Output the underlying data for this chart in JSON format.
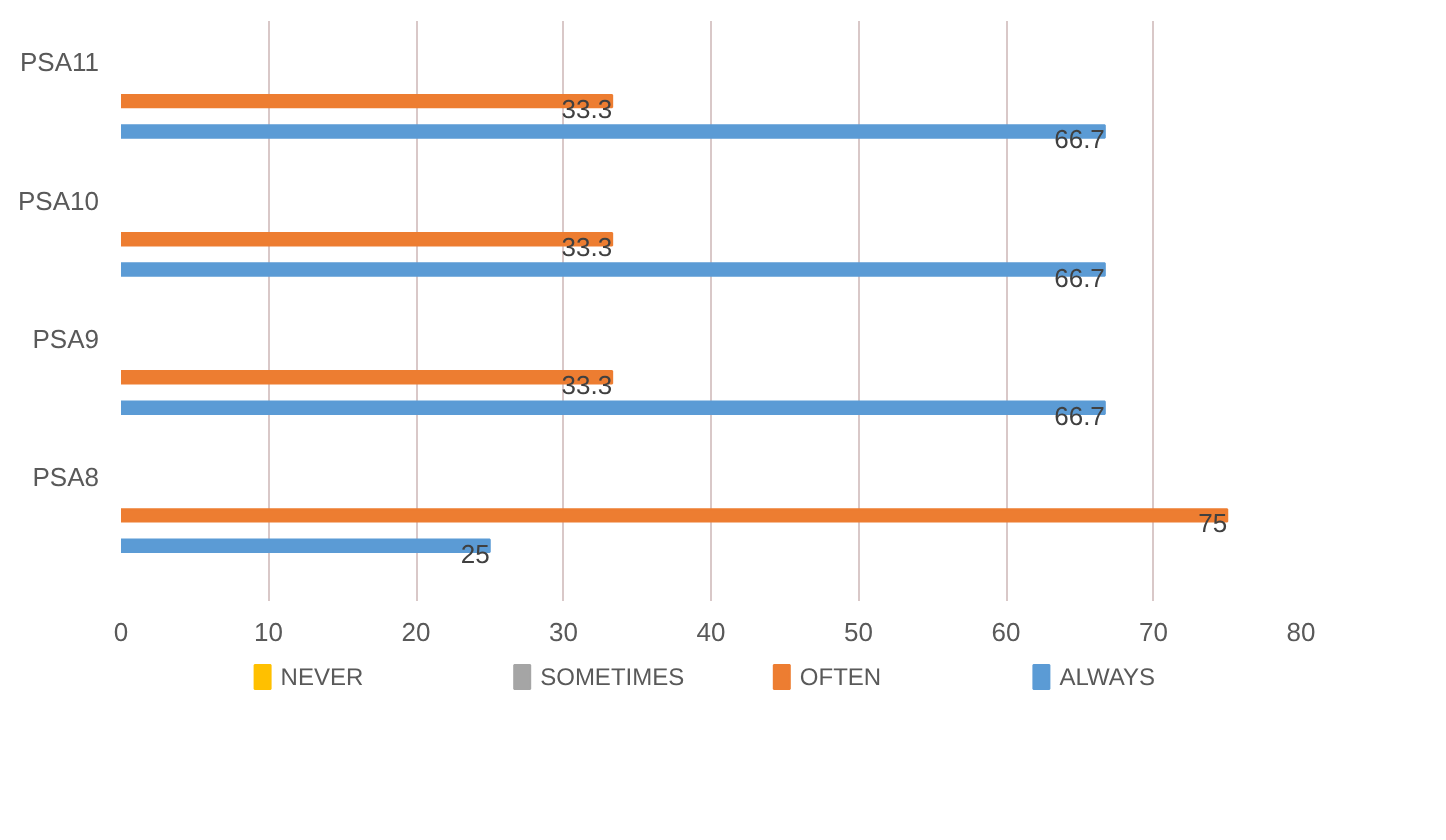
{
  "chart_data": {
    "type": "bar",
    "orientation": "horizontal",
    "categories": [
      "PSA11",
      "PSA10",
      "PSA9",
      "PSA8"
    ],
    "series": [
      {
        "name": "NEVER",
        "color": "#ffc000",
        "values": [
          null,
          null,
          null,
          null
        ]
      },
      {
        "name": "SOMETIMES",
        "color": "#a5a5a5",
        "values": [
          null,
          null,
          null,
          null
        ]
      },
      {
        "name": "OFTEN",
        "color": "#ed7d31",
        "values": [
          33.3,
          33.3,
          33.3,
          75
        ]
      },
      {
        "name": "ALWAYS",
        "color": "#5b9bd5",
        "values": [
          66.7,
          66.7,
          66.7,
          25
        ]
      }
    ],
    "xlim": [
      0,
      80
    ],
    "xticks": [
      0,
      10,
      20,
      30,
      40,
      50,
      60,
      70,
      80
    ],
    "grid": "x",
    "legend": "bottom",
    "data_labels": true
  }
}
